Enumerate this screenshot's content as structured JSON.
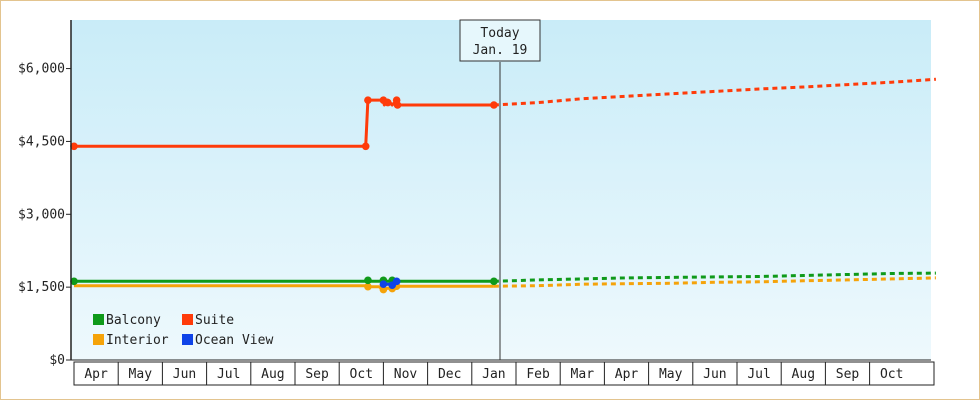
{
  "chart_data": {
    "type": "line",
    "y_axis": {
      "min": 0,
      "max": 7000,
      "ticks": [
        0,
        1500,
        3000,
        4500,
        6000
      ],
      "tick_labels": [
        "$0",
        "$1,500",
        "$3,000",
        "$4,500",
        "$6,000"
      ]
    },
    "x_axis": {
      "months": [
        "Apr",
        "May",
        "Jun",
        "Jul",
        "Aug",
        "Sep",
        "Oct",
        "Nov",
        "Dec",
        "Jan",
        "Feb",
        "Mar",
        "Apr",
        "May",
        "Jun",
        "Jul",
        "Aug",
        "Sep",
        "Oct"
      ]
    },
    "today_marker": {
      "line1": "Today",
      "line2": "Jan. 19",
      "x": 9.0
    },
    "grid": false,
    "legend": {
      "placement": "bottom-left",
      "items": [
        {
          "name": "Balcony",
          "color": "#0f9a1a"
        },
        {
          "name": "Suite",
          "color": "#ff3b0a"
        },
        {
          "name": "Interior",
          "color": "#f5a30a"
        },
        {
          "name": "Ocean View",
          "color": "#0f43e8"
        }
      ]
    },
    "series": [
      {
        "name": "Suite",
        "color": "#ff3b0a",
        "history": [
          [
            -0.5,
            4400
          ],
          [
            6.1,
            4400
          ],
          [
            6.15,
            5350
          ],
          [
            6.5,
            5350
          ],
          [
            6.52,
            5250
          ],
          [
            6.6,
            5350
          ],
          [
            6.7,
            5250
          ],
          [
            6.8,
            5350
          ],
          [
            6.82,
            5250
          ],
          [
            9.0,
            5250
          ]
        ],
        "markers": [
          [
            -0.5,
            4400
          ],
          [
            6.1,
            4400
          ],
          [
            6.15,
            5350
          ],
          [
            6.5,
            5350
          ],
          [
            6.6,
            5300
          ],
          [
            6.8,
            5350
          ],
          [
            6.82,
            5250
          ],
          [
            9.0,
            5250
          ]
        ],
        "forecast": [
          [
            9.0,
            5250
          ],
          [
            10.0,
            5300
          ],
          [
            11.0,
            5380
          ],
          [
            12.0,
            5430
          ],
          [
            13.0,
            5480
          ],
          [
            14.0,
            5530
          ],
          [
            15.0,
            5580
          ],
          [
            16.0,
            5620
          ],
          [
            17.0,
            5670
          ],
          [
            18.0,
            5720
          ],
          [
            19.0,
            5780
          ]
        ]
      },
      {
        "name": "Balcony",
        "color": "#0f9a1a",
        "history": [
          [
            -0.5,
            1620
          ],
          [
            9.0,
            1620
          ]
        ],
        "markers": [
          [
            -0.5,
            1620
          ],
          [
            6.15,
            1640
          ],
          [
            6.5,
            1640
          ],
          [
            6.7,
            1640
          ],
          [
            9.0,
            1620
          ]
        ],
        "forecast": [
          [
            9.0,
            1620
          ],
          [
            10.0,
            1650
          ],
          [
            11.0,
            1670
          ],
          [
            12.0,
            1690
          ],
          [
            13.0,
            1700
          ],
          [
            14.0,
            1710
          ],
          [
            15.0,
            1720
          ],
          [
            16.0,
            1740
          ],
          [
            17.0,
            1760
          ],
          [
            18.0,
            1780
          ],
          [
            19.0,
            1790
          ]
        ]
      },
      {
        "name": "Interior",
        "color": "#f5a30a",
        "history": [
          [
            -0.5,
            1530
          ],
          [
            6.1,
            1530
          ],
          [
            6.15,
            1510
          ],
          [
            6.4,
            1510
          ],
          [
            6.5,
            1450
          ],
          [
            6.6,
            1480
          ],
          [
            6.7,
            1470
          ],
          [
            6.8,
            1520
          ],
          [
            9.0,
            1520
          ]
        ],
        "markers": [
          [
            6.15,
            1510
          ],
          [
            6.5,
            1450
          ],
          [
            6.7,
            1470
          ],
          [
            6.8,
            1520
          ]
        ],
        "forecast": [
          [
            9.0,
            1520
          ],
          [
            10.0,
            1530
          ],
          [
            11.0,
            1560
          ],
          [
            12.0,
            1570
          ],
          [
            13.0,
            1580
          ],
          [
            14.0,
            1600
          ],
          [
            15.0,
            1610
          ],
          [
            16.0,
            1630
          ],
          [
            17.0,
            1650
          ],
          [
            18.0,
            1670
          ],
          [
            19.0,
            1690
          ]
        ]
      },
      {
        "name": "Ocean View",
        "color": "#0f43e8",
        "history": [
          [
            6.5,
            1560
          ],
          [
            6.6,
            1560
          ],
          [
            6.7,
            1560
          ],
          [
            6.8,
            1620
          ]
        ],
        "markers": [
          [
            6.5,
            1560
          ],
          [
            6.7,
            1540
          ],
          [
            6.8,
            1620
          ]
        ],
        "forecast": []
      }
    ]
  }
}
